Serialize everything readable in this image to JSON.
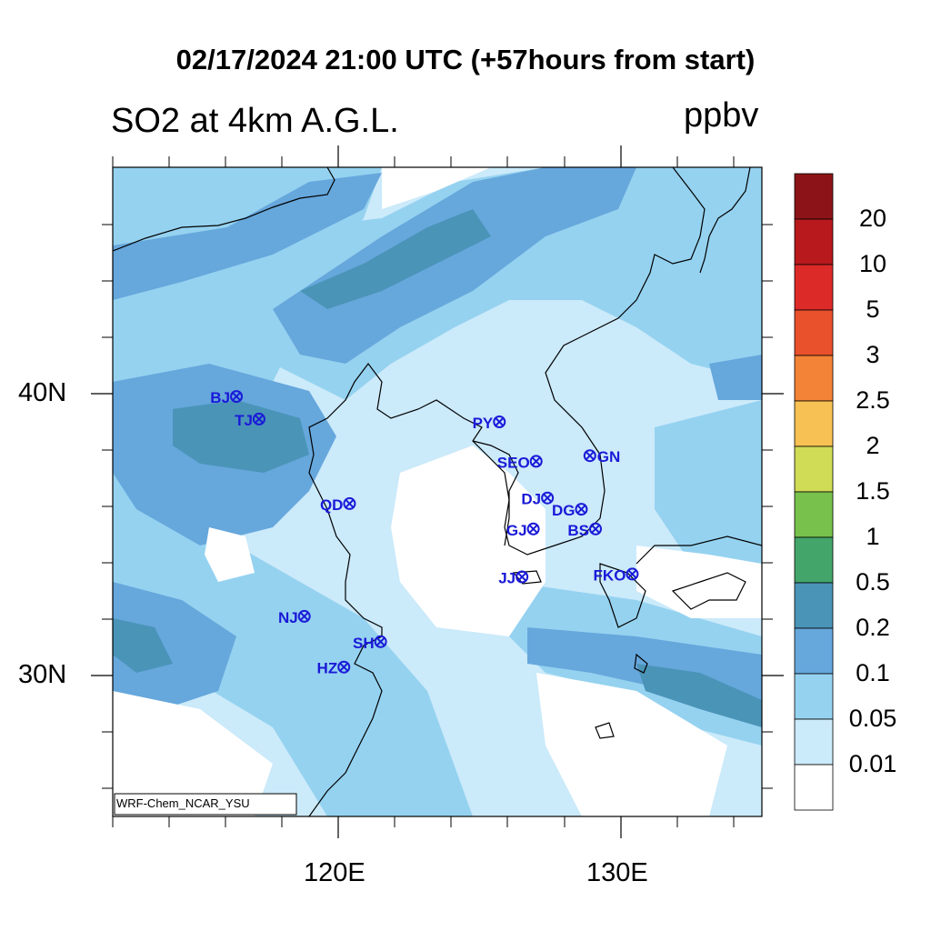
{
  "title": "02/17/2024 21:00 UTC (+57hours from start)",
  "subtitle": "SO2 at 4km A.G.L.",
  "units": "ppbv",
  "credit": "WRF-Chem_NCAR_YSU",
  "axes": {
    "x_ticks": [
      {
        "label": "120E",
        "lon": 120
      },
      {
        "label": "130E",
        "lon": 130
      }
    ],
    "y_ticks": [
      {
        "label": "40N",
        "lat": 40
      },
      {
        "label": "30N",
        "lat": 30
      }
    ],
    "lon_range": [
      112,
      135
    ],
    "lat_range": [
      25,
      48
    ]
  },
  "colorbar": {
    "labels": [
      "20",
      "10",
      "5",
      "3",
      "2.5",
      "2",
      "1.5",
      "1",
      "0.5",
      "0.2",
      "0.1",
      "0.05",
      "0.01"
    ],
    "colors": [
      "#8c1418",
      "#b8191d",
      "#dc2a29",
      "#e8512c",
      "#f38337",
      "#f8c153",
      "#d0dc56",
      "#78c14c",
      "#44a56b",
      "#4a94b8",
      "#66a7dc",
      "#95d2f0",
      "#cbeafa",
      "#ffffff"
    ]
  },
  "stations": [
    {
      "label": "BJ",
      "lon": 116.4,
      "lat": 39.9
    },
    {
      "label": "TJ",
      "lon": 117.2,
      "lat": 39.1
    },
    {
      "label": "PY",
      "lon": 125.7,
      "lat": 39.0
    },
    {
      "label": "SEO",
      "lon": 127.0,
      "lat": 37.6
    },
    {
      "label": "GN",
      "lon": 128.9,
      "lat": 37.8
    },
    {
      "label": "DJ",
      "lon": 127.4,
      "lat": 36.3
    },
    {
      "label": "DG",
      "lon": 128.6,
      "lat": 35.9
    },
    {
      "label": "QD",
      "lon": 120.4,
      "lat": 36.1
    },
    {
      "label": "GJ",
      "lon": 126.9,
      "lat": 35.2
    },
    {
      "label": "BS",
      "lon": 129.1,
      "lat": 35.2
    },
    {
      "label": "JJ",
      "lon": 126.5,
      "lat": 33.5
    },
    {
      "label": "FKO",
      "lon": 130.4,
      "lat": 33.6
    },
    {
      "label": "NJ",
      "lon": 118.8,
      "lat": 32.1
    },
    {
      "label": "SH",
      "lon": 121.5,
      "lat": 31.2
    },
    {
      "label": "HZ",
      "lon": 120.2,
      "lat": 30.3
    }
  ]
}
